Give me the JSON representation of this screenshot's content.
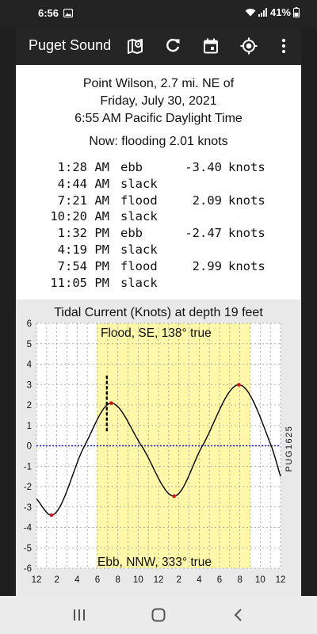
{
  "status_bar": {
    "time": "6:56",
    "battery": "41%",
    "icons": [
      "gallery-icon",
      "wifi-icon",
      "signal-icon",
      "battery-icon"
    ]
  },
  "app_bar": {
    "title": "Puget Sound",
    "icons": [
      "map-pin-icon",
      "refresh-icon",
      "calendar-icon",
      "my-location-icon",
      "more-vert-icon"
    ]
  },
  "header": {
    "station": "Point Wilson, 2.7 mi. NE of",
    "date": "Friday, July 30, 2021",
    "time": "6:55 AM Pacific Daylight Time",
    "now": "Now: flooding  2.01 knots"
  },
  "events": [
    {
      "time": "1:28 AM",
      "type": "ebb",
      "speed": "-3.40",
      "unit": "knots"
    },
    {
      "time": "4:44 AM",
      "type": "slack",
      "speed": "",
      "unit": ""
    },
    {
      "time": "7:21 AM",
      "type": "flood",
      "speed": "2.09",
      "unit": "knots"
    },
    {
      "time": "10:20 AM",
      "type": "slack",
      "speed": "",
      "unit": ""
    },
    {
      "time": "1:32 PM",
      "type": "ebb",
      "speed": "-2.47",
      "unit": "knots"
    },
    {
      "time": "4:19 PM",
      "type": "slack",
      "speed": "",
      "unit": ""
    },
    {
      "time": "7:54 PM",
      "type": "flood",
      "speed": "2.99",
      "unit": "knots"
    },
    {
      "time": "11:05 PM",
      "type": "slack",
      "speed": "",
      "unit": ""
    }
  ],
  "chart_data": {
    "type": "line",
    "title": "Tidal Current (Knots) at depth 19 feet",
    "station_id": "PUG1625",
    "flood_label": "Flood, SE, 138° true",
    "ebb_label": "Ebb, NNW, 333° true",
    "x_range_hours": [
      0,
      24
    ],
    "ylim": [
      -6,
      6
    ],
    "y_ticks": [
      "6",
      "5",
      "4",
      "3",
      "2",
      "1",
      "0",
      "-1",
      "-2",
      "-3",
      "-4",
      "-5",
      "-6"
    ],
    "x_ticks": [
      "12",
      "2",
      "4",
      "6",
      "8",
      "10",
      "12",
      "2",
      "4",
      "6",
      "8",
      "10",
      "12"
    ],
    "daylight_hours": [
      5.9,
      21.0
    ],
    "current_time_hour": 6.92,
    "grid": true,
    "series": [
      {
        "x": [
          0,
          1.47,
          4.73,
          7.35,
          10.33,
          13.53,
          16.32,
          19.9,
          23.08,
          24
        ],
        "values": [
          -2.6,
          -3.4,
          0,
          2.09,
          0,
          -2.47,
          0,
          2.99,
          0,
          -1.5
        ]
      }
    ],
    "extrema": [
      {
        "x": 1.47,
        "y": -3.4
      },
      {
        "x": 7.35,
        "y": 2.09
      },
      {
        "x": 13.53,
        "y": -2.47
      },
      {
        "x": 19.9,
        "y": 2.99
      }
    ],
    "colors": {
      "curve": "#000000",
      "daylight": "#fff8a8",
      "zero_line": "#1c1ccc",
      "extrema": "#e01010",
      "grid": "#9a9a9a"
    }
  }
}
